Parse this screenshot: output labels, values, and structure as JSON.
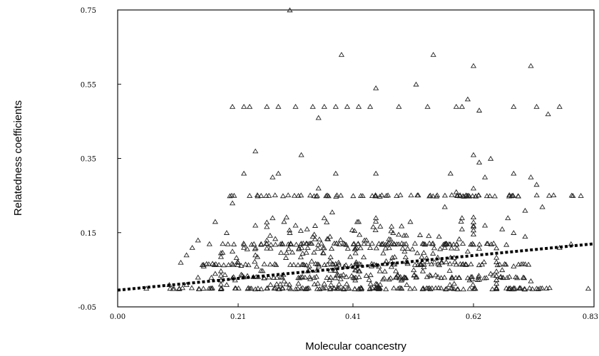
{
  "chart_data": {
    "type": "scatter",
    "title": "",
    "xlabel": "Molecular coancestry",
    "ylabel": "Relatedness coefficients",
    "xlim": [
      0.0,
      0.83
    ],
    "ylim": [
      -0.05,
      0.75
    ],
    "x_ticks": [
      {
        "value": 0.0,
        "label": "0.00"
      },
      {
        "value": 0.21,
        "label": "0.21"
      },
      {
        "value": 0.41,
        "label": "0.41"
      },
      {
        "value": 0.62,
        "label": "0.62"
      },
      {
        "value": 0.83,
        "label": "0.83"
      }
    ],
    "y_ticks": [
      {
        "value": -0.05,
        "label": "-0.05"
      },
      {
        "value": 0.15,
        "label": "0.15"
      },
      {
        "value": 0.35,
        "label": "0.35"
      },
      {
        "value": 0.55,
        "label": "0.55"
      },
      {
        "value": 0.75,
        "label": "0.75"
      }
    ],
    "marker": "open-triangle",
    "grid": false,
    "series": [
      {
        "points": [
          [
            0.3,
            0.75
          ],
          [
            0.39,
            0.63
          ],
          [
            0.55,
            0.63
          ],
          [
            0.62,
            0.6
          ],
          [
            0.72,
            0.6
          ],
          [
            0.45,
            0.54
          ],
          [
            0.52,
            0.55
          ],
          [
            0.61,
            0.51
          ],
          [
            0.6,
            0.49
          ],
          [
            0.2,
            0.49
          ],
          [
            0.22,
            0.49
          ],
          [
            0.23,
            0.49
          ],
          [
            0.26,
            0.49
          ],
          [
            0.28,
            0.49
          ],
          [
            0.31,
            0.49
          ],
          [
            0.34,
            0.49
          ],
          [
            0.36,
            0.49
          ],
          [
            0.38,
            0.49
          ],
          [
            0.4,
            0.49
          ],
          [
            0.42,
            0.49
          ],
          [
            0.44,
            0.49
          ],
          [
            0.49,
            0.49
          ],
          [
            0.54,
            0.49
          ],
          [
            0.59,
            0.49
          ],
          [
            0.69,
            0.49
          ],
          [
            0.73,
            0.49
          ],
          [
            0.77,
            0.49
          ],
          [
            0.35,
            0.46
          ],
          [
            0.75,
            0.47
          ],
          [
            0.63,
            0.48
          ],
          [
            0.24,
            0.37
          ],
          [
            0.32,
            0.36
          ],
          [
            0.62,
            0.36
          ],
          [
            0.65,
            0.35
          ],
          [
            0.63,
            0.34
          ],
          [
            0.22,
            0.31
          ],
          [
            0.28,
            0.31
          ],
          [
            0.38,
            0.31
          ],
          [
            0.45,
            0.31
          ],
          [
            0.58,
            0.31
          ],
          [
            0.69,
            0.31
          ],
          [
            0.64,
            0.3
          ],
          [
            0.72,
            0.3
          ],
          [
            0.27,
            0.3
          ],
          [
            0.35,
            0.27
          ],
          [
            0.59,
            0.26
          ],
          [
            0.73,
            0.28
          ],
          [
            0.62,
            0.27
          ],
          [
            0.2,
            0.23
          ],
          [
            0.23,
            0.25
          ],
          [
            0.25,
            0.25
          ],
          [
            0.74,
            0.22
          ],
          [
            0.71,
            0.21
          ],
          [
            0.57,
            0.22
          ],
          [
            0.68,
            0.19
          ],
          [
            0.19,
            0.15
          ],
          [
            0.14,
            0.13
          ],
          [
            0.13,
            0.11
          ],
          [
            0.12,
            0.09
          ],
          [
            0.11,
            0.07
          ],
          [
            0.15,
            0.06
          ],
          [
            0.17,
            0.18
          ],
          [
            0.16,
            0.12
          ],
          [
            0.27,
            0.19
          ],
          [
            0.29,
            0.18
          ],
          [
            0.31,
            0.17
          ],
          [
            0.36,
            0.19
          ],
          [
            0.42,
            0.18
          ],
          [
            0.45,
            0.19
          ],
          [
            0.51,
            0.18
          ],
          [
            0.6,
            0.19
          ],
          [
            0.64,
            0.17
          ],
          [
            0.67,
            0.16
          ],
          [
            0.69,
            0.15
          ],
          [
            0.71,
            0.14
          ],
          [
            0.33,
            0.16
          ],
          [
            0.24,
            0.17
          ],
          [
            0.26,
            0.13
          ],
          [
            0.48,
            0.15
          ],
          [
            0.56,
            0.14
          ],
          [
            0.6,
            0.16
          ],
          [
            0.82,
            0.0
          ],
          [
            0.73,
            0.0
          ],
          [
            0.77,
            0.11
          ],
          [
            0.79,
            0.12
          ],
          [
            0.05,
            0.0
          ],
          [
            0.09,
            0.01
          ],
          [
            0.12,
            0.01
          ],
          [
            0.14,
            0.03
          ],
          [
            0.17,
            0.04
          ],
          [
            0.19,
            0.01
          ],
          [
            0.65,
            0.04
          ],
          [
            0.67,
            0.05
          ],
          [
            0.69,
            0.06
          ],
          [
            0.7,
            0.0
          ],
          [
            0.72,
            0.02
          ],
          [
            0.57,
            0.11
          ],
          [
            0.61,
            0.1
          ],
          [
            0.5,
            0.1
          ],
          [
            0.46,
            0.12
          ],
          [
            0.43,
            0.13
          ],
          [
            0.37,
            0.14
          ],
          [
            0.34,
            0.14
          ],
          [
            0.3,
            0.15
          ],
          [
            0.22,
            0.11
          ],
          [
            0.2,
            0.1
          ],
          [
            0.24,
            0.09
          ],
          [
            0.21,
            0.07
          ],
          [
            0.29,
            0.02
          ]
        ],
        "bands": [
          {
            "y": 0.25,
            "x_from": 0.19,
            "x_to": 0.81,
            "count": 78
          },
          {
            "y": 0.12,
            "x_from": 0.17,
            "x_to": 0.69,
            "count": 64
          },
          {
            "y": 0.065,
            "x_from": 0.14,
            "x_to": 0.72,
            "count": 76
          },
          {
            "y": 0.03,
            "x_from": 0.16,
            "x_to": 0.73,
            "count": 70
          },
          {
            "y": 0.0,
            "x_from": 0.09,
            "x_to": 0.76,
            "count": 92
          }
        ],
        "cloud": [
          {
            "x_from": 0.18,
            "x_to": 0.66,
            "y_from": -0.005,
            "y_to": 0.13,
            "count": 230
          },
          {
            "x_from": 0.26,
            "x_to": 0.62,
            "y_from": 0.1,
            "y_to": 0.2,
            "count": 70
          }
        ]
      }
    ],
    "trendline": {
      "style": "dotted",
      "x": [
        0.0,
        0.83
      ],
      "y": [
        -0.005,
        0.12
      ]
    }
  }
}
